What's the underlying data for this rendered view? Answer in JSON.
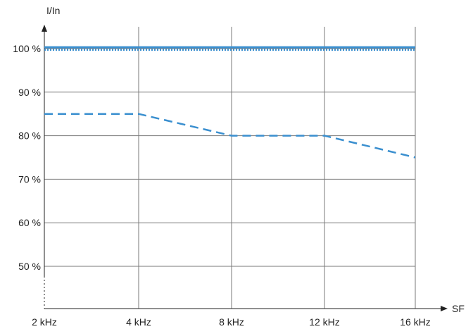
{
  "chart_data": {
    "type": "line",
    "xlabel": "SF",
    "ylabel": "I/In",
    "x": [
      "2 kHz",
      "4 kHz",
      "8 kHz",
      "12 kHz",
      "16 kHz"
    ],
    "y_ticks": [
      "50 %",
      "60 %",
      "70 %",
      "80 %",
      "90 %",
      "100 %"
    ],
    "ylim": [
      45,
      105
    ],
    "grid": true,
    "legend": "none",
    "series": [
      {
        "style": "solid",
        "color": "#3a8fcf",
        "values": [
          100.3,
          100.3,
          100.3,
          100.3,
          100.3
        ]
      },
      {
        "style": "dotted",
        "color": "#3a8fcf",
        "values": [
          99.7,
          99.7,
          99.7,
          99.7,
          99.7
        ]
      },
      {
        "style": "dashed",
        "color": "#3a8fcf",
        "values": [
          85,
          85,
          80,
          80,
          75
        ]
      }
    ]
  }
}
